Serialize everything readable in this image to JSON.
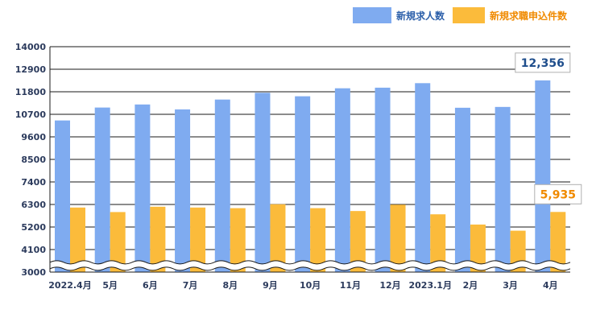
{
  "chart_data": {
    "type": "bar",
    "title": "",
    "xlabel": "",
    "ylabel": "",
    "categories": [
      "2022.4月",
      "5月",
      "6月",
      "7月",
      "8月",
      "9月",
      "10月",
      "11月",
      "12月",
      "2023.1月",
      "2月",
      "3月",
      "4月"
    ],
    "series": [
      {
        "name": "新規求人数",
        "color": "#7fabf0",
        "values": [
          10400,
          11030,
          11180,
          10940,
          11420,
          11750,
          11580,
          11970,
          12000,
          12220,
          11020,
          11060,
          12356
        ]
      },
      {
        "name": "新規求職申込件数",
        "color": "#fbbb3b",
        "values": [
          6150,
          5930,
          6190,
          6150,
          6120,
          6310,
          6120,
          5980,
          6290,
          5820,
          5320,
          5020,
          5935
        ]
      }
    ],
    "yticks": [
      3000,
      4100,
      5200,
      6300,
      7400,
      8500,
      9600,
      10700,
      11800,
      12900,
      14000
    ],
    "ylim": [
      3000,
      14000
    ],
    "grid": true,
    "legend_position": "top-right",
    "axis_break": true,
    "callouts": [
      {
        "series": 0,
        "category": 12,
        "text": "12,356",
        "color": "#1f4e8c"
      },
      {
        "series": 1,
        "category": 12,
        "text": "5,935",
        "color": "#f08a00"
      }
    ]
  }
}
